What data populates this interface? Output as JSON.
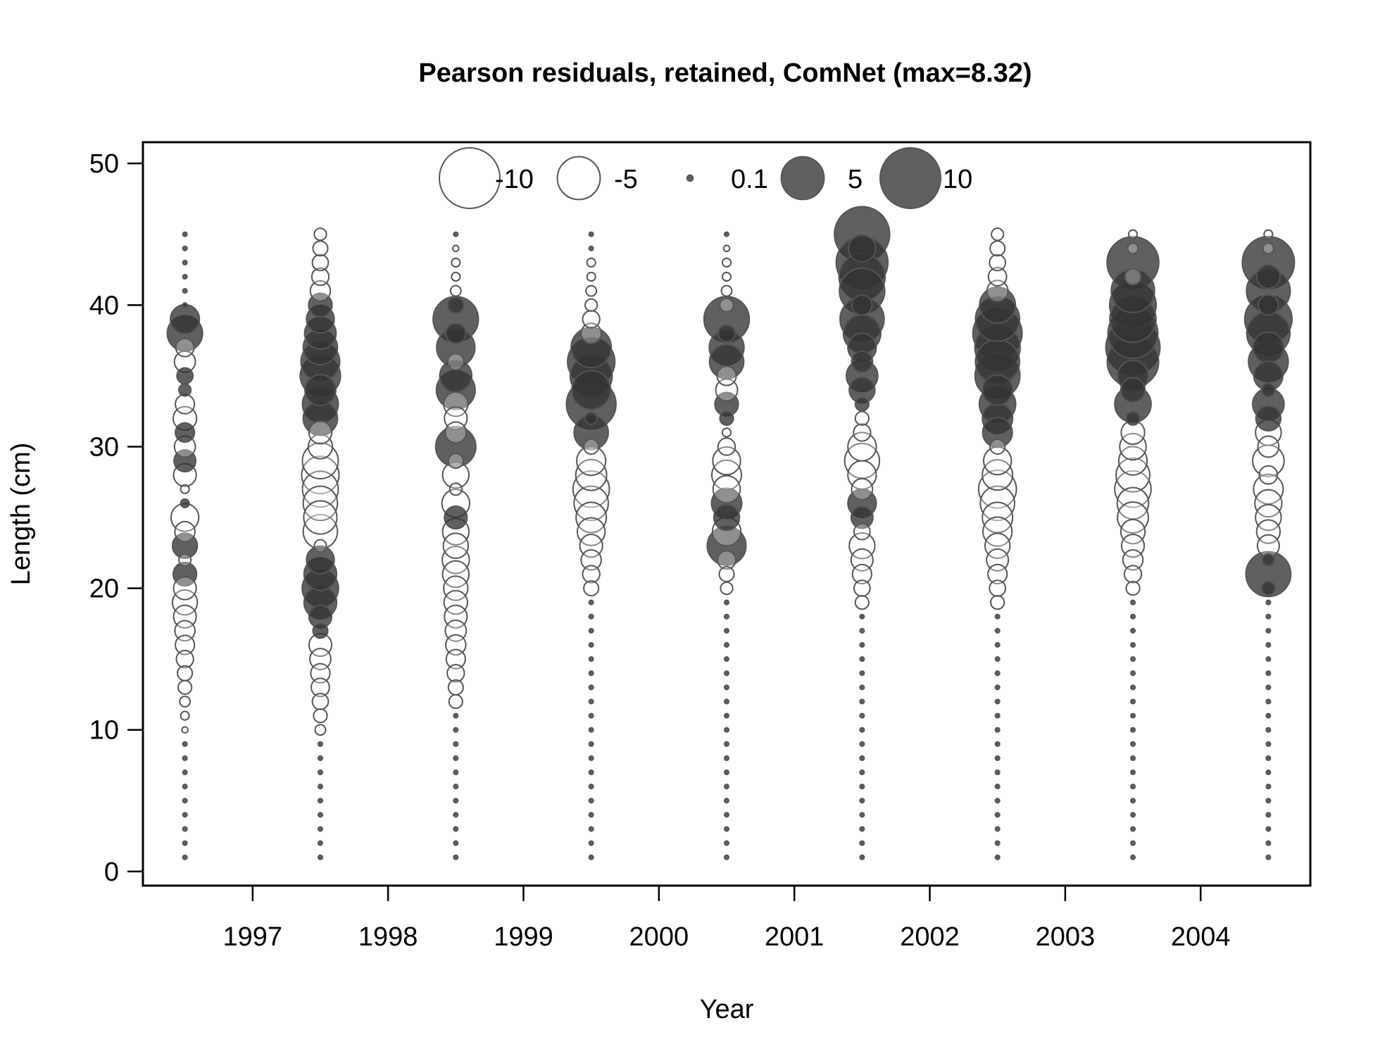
{
  "chart_data": {
    "type": "scatter",
    "subtype": "bubble",
    "title": "Pearson residuals, retained, ComNet (max=8.32)",
    "xlabel": "Year",
    "ylabel": "Length (cm)",
    "xlim": [
      1996.19,
      2004.81
    ],
    "ylim": [
      -1,
      51.5
    ],
    "x_ticks": [
      "1997",
      "1998",
      "1999",
      "2000",
      "2001",
      "2002",
      "2003",
      "2004"
    ],
    "y_ticks": [
      "0",
      "10",
      "20",
      "30",
      "40",
      "50"
    ],
    "grid": false,
    "colors": {
      "positive": "#333333",
      "negative": "#ffffff",
      "outline": "#555555"
    },
    "legend": {
      "placement": "top",
      "entries": [
        {
          "label": "-10",
          "value": -10
        },
        {
          "label": "-5",
          "value": -5
        },
        {
          "label": "0.1",
          "value": 0.1
        },
        {
          "label": "5",
          "value": 5
        },
        {
          "label": "10",
          "value": 10
        }
      ]
    },
    "length_range": [
      1,
      45
    ],
    "series": [
      {
        "year": 1996.5,
        "residuals": {
          "39": 2.3,
          "38": 3.4,
          "37": -0.9,
          "36": -1.2,
          "35": 0.7,
          "34": 0.4,
          "33": -1.0,
          "32": -1.5,
          "31": 1.0,
          "30": -1.2,
          "29": 1.3,
          "28": -1.4,
          "27": -0.2,
          "26": 0.2,
          "25": -2.1,
          "24": -1.1,
          "23": 1.7,
          "22": -0.4,
          "21": 1.5,
          "20": -1.4,
          "19": -1.7,
          "18": -1.4,
          "17": -1.1,
          "16": -1.0,
          "15": -0.8,
          "14": -0.6,
          "13": -0.5,
          "12": -0.3,
          "11": -0.2,
          "10": -0.1
        }
      },
      {
        "year": 1997.5,
        "residuals": {
          "45": -0.4,
          "44": -0.6,
          "43": -0.7,
          "42": -0.8,
          "41": -1.1,
          "40": 1.5,
          "39": 2.1,
          "38": 2.7,
          "37": 3.2,
          "36": 4.1,
          "35": 4.4,
          "34": 2.6,
          "33": 3.5,
          "32": 3.2,
          "31": -1.4,
          "30": -1.6,
          "29": -3.5,
          "28": -3.8,
          "27": -3.5,
          "26": -3.2,
          "25": -3.0,
          "24": -3.2,
          "23": -0.4,
          "22": 2.1,
          "21": 2.9,
          "20": 3.6,
          "19": 2.9,
          "18": 1.4,
          "17": 0.6,
          "16": -1.4,
          "15": -1.2,
          "14": -1.0,
          "13": -0.9,
          "12": -0.7,
          "11": -0.5,
          "10": -0.3
        }
      },
      {
        "year": 1998.5,
        "residuals": {
          "44": -0.1,
          "43": -0.2,
          "42": -0.2,
          "41": -0.3,
          "40": 0.7,
          "39": 5.6,
          "38": 1.1,
          "37": 4.0,
          "36": -0.7,
          "35": 2.8,
          "34": 4.1,
          "33": -1.6,
          "32": -1.4,
          "31": -1.2,
          "30": 4.4,
          "29": -0.6,
          "28": -1.9,
          "27": -0.4,
          "26": -2.1,
          "25": 1.4,
          "24": -1.9,
          "23": -1.7,
          "22": -2.0,
          "21": -1.9,
          "20": -1.6,
          "19": -1.5,
          "18": -1.4,
          "17": -1.2,
          "16": -1.1,
          "15": -1.0,
          "14": -0.8,
          "13": -0.6,
          "12": -0.5
        }
      },
      {
        "year": 1999.5,
        "residuals": {
          "43": -0.2,
          "42": -0.2,
          "41": -0.3,
          "40": -0.4,
          "39": -0.8,
          "38": -1.1,
          "37": 4.4,
          "36": 6.1,
          "35": 4.8,
          "34": 4.1,
          "33": 6.7,
          "32": 0.4,
          "31": 3.2,
          "30": -0.6,
          "29": -2.3,
          "28": -2.6,
          "27": -3.6,
          "26": -3.2,
          "25": -2.5,
          "24": -2.1,
          "23": -1.4,
          "22": -1.1,
          "21": -0.8,
          "20": -0.6
        }
      },
      {
        "year": 2000.5,
        "residuals": {
          "44": -0.1,
          "43": -0.2,
          "42": -0.2,
          "41": -0.3,
          "40": -0.5,
          "39": 5.6,
          "38": 0.8,
          "37": 3.3,
          "36": 3.2,
          "35": -1.0,
          "34": -1.3,
          "33": 1.5,
          "32": 0.5,
          "31": -0.2,
          "30": -0.8,
          "29": -2.1,
          "28": -2.4,
          "27": -2.0,
          "26": 2.5,
          "25": 1.8,
          "24": -2.2,
          "23": 4.1,
          "22": -0.9,
          "21": -0.6,
          "20": -0.4
        }
      },
      {
        "year": 2001.5,
        "residuals": {
          "45": 8.32,
          "44": 2.0,
          "43": 7.3,
          "42": 5.8,
          "41": 5.6,
          "40": 1.1,
          "39": 5.3,
          "38": 3.8,
          "37": 2.2,
          "36": 1.2,
          "35": 2.7,
          "34": 1.8,
          "33": 0.5,
          "32": -0.5,
          "31": -0.8,
          "30": -2.2,
          "29": -3.3,
          "28": -2.2,
          "27": -1.2,
          "26": 2.2,
          "25": 1.3,
          "24": -0.7,
          "23": -1.8,
          "22": -1.3,
          "21": -1.0,
          "20": -0.7,
          "19": -0.5
        }
      },
      {
        "year": 2002.5,
        "residuals": {
          "45": -0.4,
          "44": -0.6,
          "43": -0.7,
          "42": -0.9,
          "41": -1.2,
          "40": 3.5,
          "39": 5.3,
          "38": 6.6,
          "37": 5.6,
          "36": 5.3,
          "35": 5.5,
          "34": 2.5,
          "33": 3.6,
          "32": 2.5,
          "31": 2.4,
          "30": -0.6,
          "29": -2.1,
          "28": -2.5,
          "27": -3.9,
          "26": -3.2,
          "25": -2.5,
          "24": -2.3,
          "23": -1.7,
          "22": -1.3,
          "21": -1.0,
          "20": -0.7,
          "19": -0.5
        }
      },
      {
        "year": 2003.5,
        "residuals": {
          "45": -0.2,
          "44": -0.3,
          "43": 7.3,
          "42": -0.7,
          "41": 5.1,
          "40": 5.9,
          "39": 5.8,
          "38": 6.8,
          "37": 8.0,
          "36": 7.2,
          "35": 2.6,
          "34": 1.6,
          "33": 3.6,
          "32": 0.5,
          "31": -1.5,
          "30": -1.9,
          "29": -2.2,
          "28": -3.1,
          "27": -3.6,
          "26": -2.7,
          "25": -2.6,
          "24": -1.6,
          "23": -1.4,
          "22": -1.1,
          "21": -0.8,
          "20": -0.5
        }
      },
      {
        "year": 2004.5,
        "residuals": {
          "45": -0.2,
          "44": -0.3,
          "43": 7.4,
          "42": 1.5,
          "41": 5.2,
          "40": 1.1,
          "39": 6.1,
          "38": 5.1,
          "37": 2.6,
          "36": 4.3,
          "35": 2.3,
          "34": 0.5,
          "33": 2.7,
          "32": 1.7,
          "31": -1.8,
          "30": -1.2,
          "29": -2.7,
          "28": -0.9,
          "27": -2.4,
          "26": -2.0,
          "25": -1.8,
          "24": -1.5,
          "23": -1.3,
          "22": 0.4,
          "21": 5.5,
          "20": 0.5
        }
      }
    ]
  }
}
